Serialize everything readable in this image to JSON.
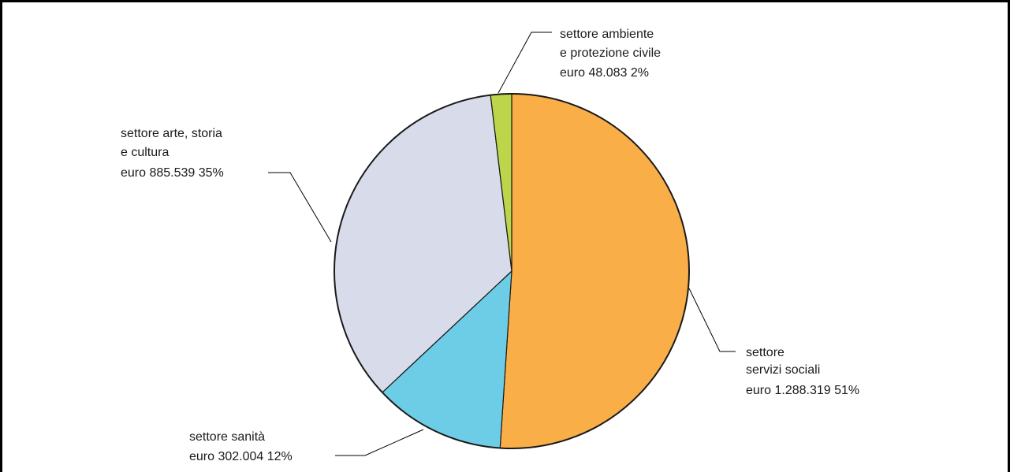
{
  "chart_data": {
    "type": "pie",
    "title": "",
    "slices": [
      {
        "name": "settore servizi sociali",
        "amount": 1288319,
        "percent": 51,
        "color": "#f9ae48",
        "label_lines": [
          "settore",
          "servizi sociali",
          "euro 1.288.319 51%"
        ]
      },
      {
        "name": "settore sanità",
        "amount": 302004,
        "percent": 12,
        "color": "#6dcde6",
        "label_lines": [
          "settore sanità",
          "euro 302.004 12%"
        ]
      },
      {
        "name": "settore arte, storia e cultura",
        "amount": 885539,
        "percent": 35,
        "color": "#d8dcea",
        "label_lines": [
          "settore arte, storia",
          "e cultura",
          "euro 885.539 35%"
        ]
      },
      {
        "name": "settore ambiente e protezione civile",
        "amount": 48083,
        "percent": 2,
        "color": "#bcd54a",
        "label_lines": [
          "settore ambiente",
          "e protezione civile",
          "euro 48.083 2%"
        ]
      }
    ],
    "start_angle": "top (12 o'clock)",
    "direction": "clockwise",
    "legend": "none (callout labels with leader lines)"
  }
}
